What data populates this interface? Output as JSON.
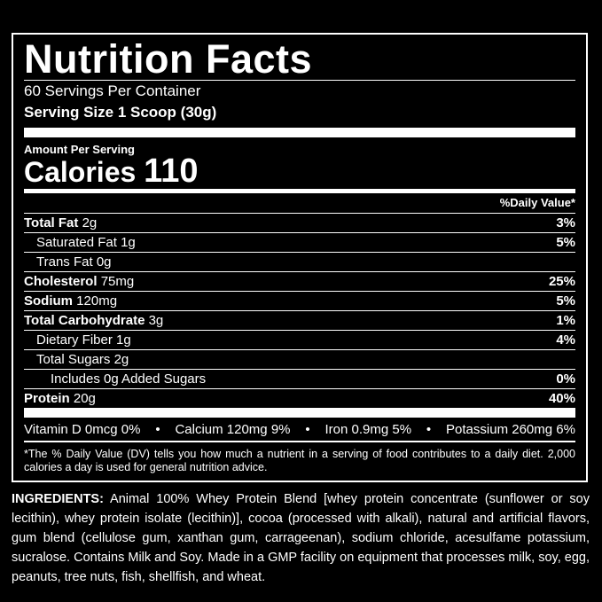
{
  "title": "Nutrition Facts",
  "servings": "60 Servings Per Container",
  "serving_size": "Serving Size 1 Scoop (30g)",
  "amount_per_serving": "Amount Per Serving",
  "calories_label": "Calories",
  "calories_value": "110",
  "dv_header": "%Daily Value*",
  "rows": [
    {
      "label": "Total Fat",
      "amount": "2g",
      "dv": "3%",
      "bold": true,
      "indent": 0
    },
    {
      "label": "Saturated Fat",
      "amount": "1g",
      "dv": "5%",
      "bold": false,
      "indent": 1
    },
    {
      "label": "Trans Fat",
      "amount": "0g",
      "dv": "",
      "bold": false,
      "indent": 1
    },
    {
      "label": "Cholesterol",
      "amount": "75mg",
      "dv": "25%",
      "bold": true,
      "indent": 0
    },
    {
      "label": "Sodium",
      "amount": "120mg",
      "dv": "5%",
      "bold": true,
      "indent": 0
    },
    {
      "label": "Total Carbohydrate",
      "amount": "3g",
      "dv": "1%",
      "bold": true,
      "indent": 0
    },
    {
      "label": "Dietary Fiber",
      "amount": "1g",
      "dv": "4%",
      "bold": false,
      "indent": 1
    },
    {
      "label": "Total Sugars",
      "amount": "2g",
      "dv": "",
      "bold": false,
      "indent": 1
    },
    {
      "label": "Includes 0g Added Sugars",
      "amount": "",
      "dv": "0%",
      "bold": false,
      "indent": 2
    },
    {
      "label": "Protein",
      "amount": "20g",
      "dv": "40%",
      "bold": true,
      "indent": 0
    }
  ],
  "vitamins": [
    "Vitamin D 0mcg 0%",
    "•",
    "Calcium 120mg 9%",
    "•",
    "Iron 0.9mg 5%",
    "•",
    "Potassium 260mg 6%"
  ],
  "footnote": "*The % Daily Value (DV) tells you how much a nutrient in a serving of food contributes to a daily diet. 2,000 calories a day is used for general nutrition advice.",
  "ingredients_label": "INGREDIENTS:",
  "ingredients_text": "Animal 100% Whey Protein Blend [whey protein concentrate (sunflower or soy lecithin), whey protein isolate (lecithin)], cocoa (processed with alkali), natural and artificial flavors, gum blend (cellulose gum, xanthan gum, carrageenan), sodium chloride, acesulfame potassium, sucralose. Contains Milk and Soy. Made in a GMP facility on equipment that processes milk, soy, egg, peanuts, tree nuts, fish, shellfish, and wheat."
}
